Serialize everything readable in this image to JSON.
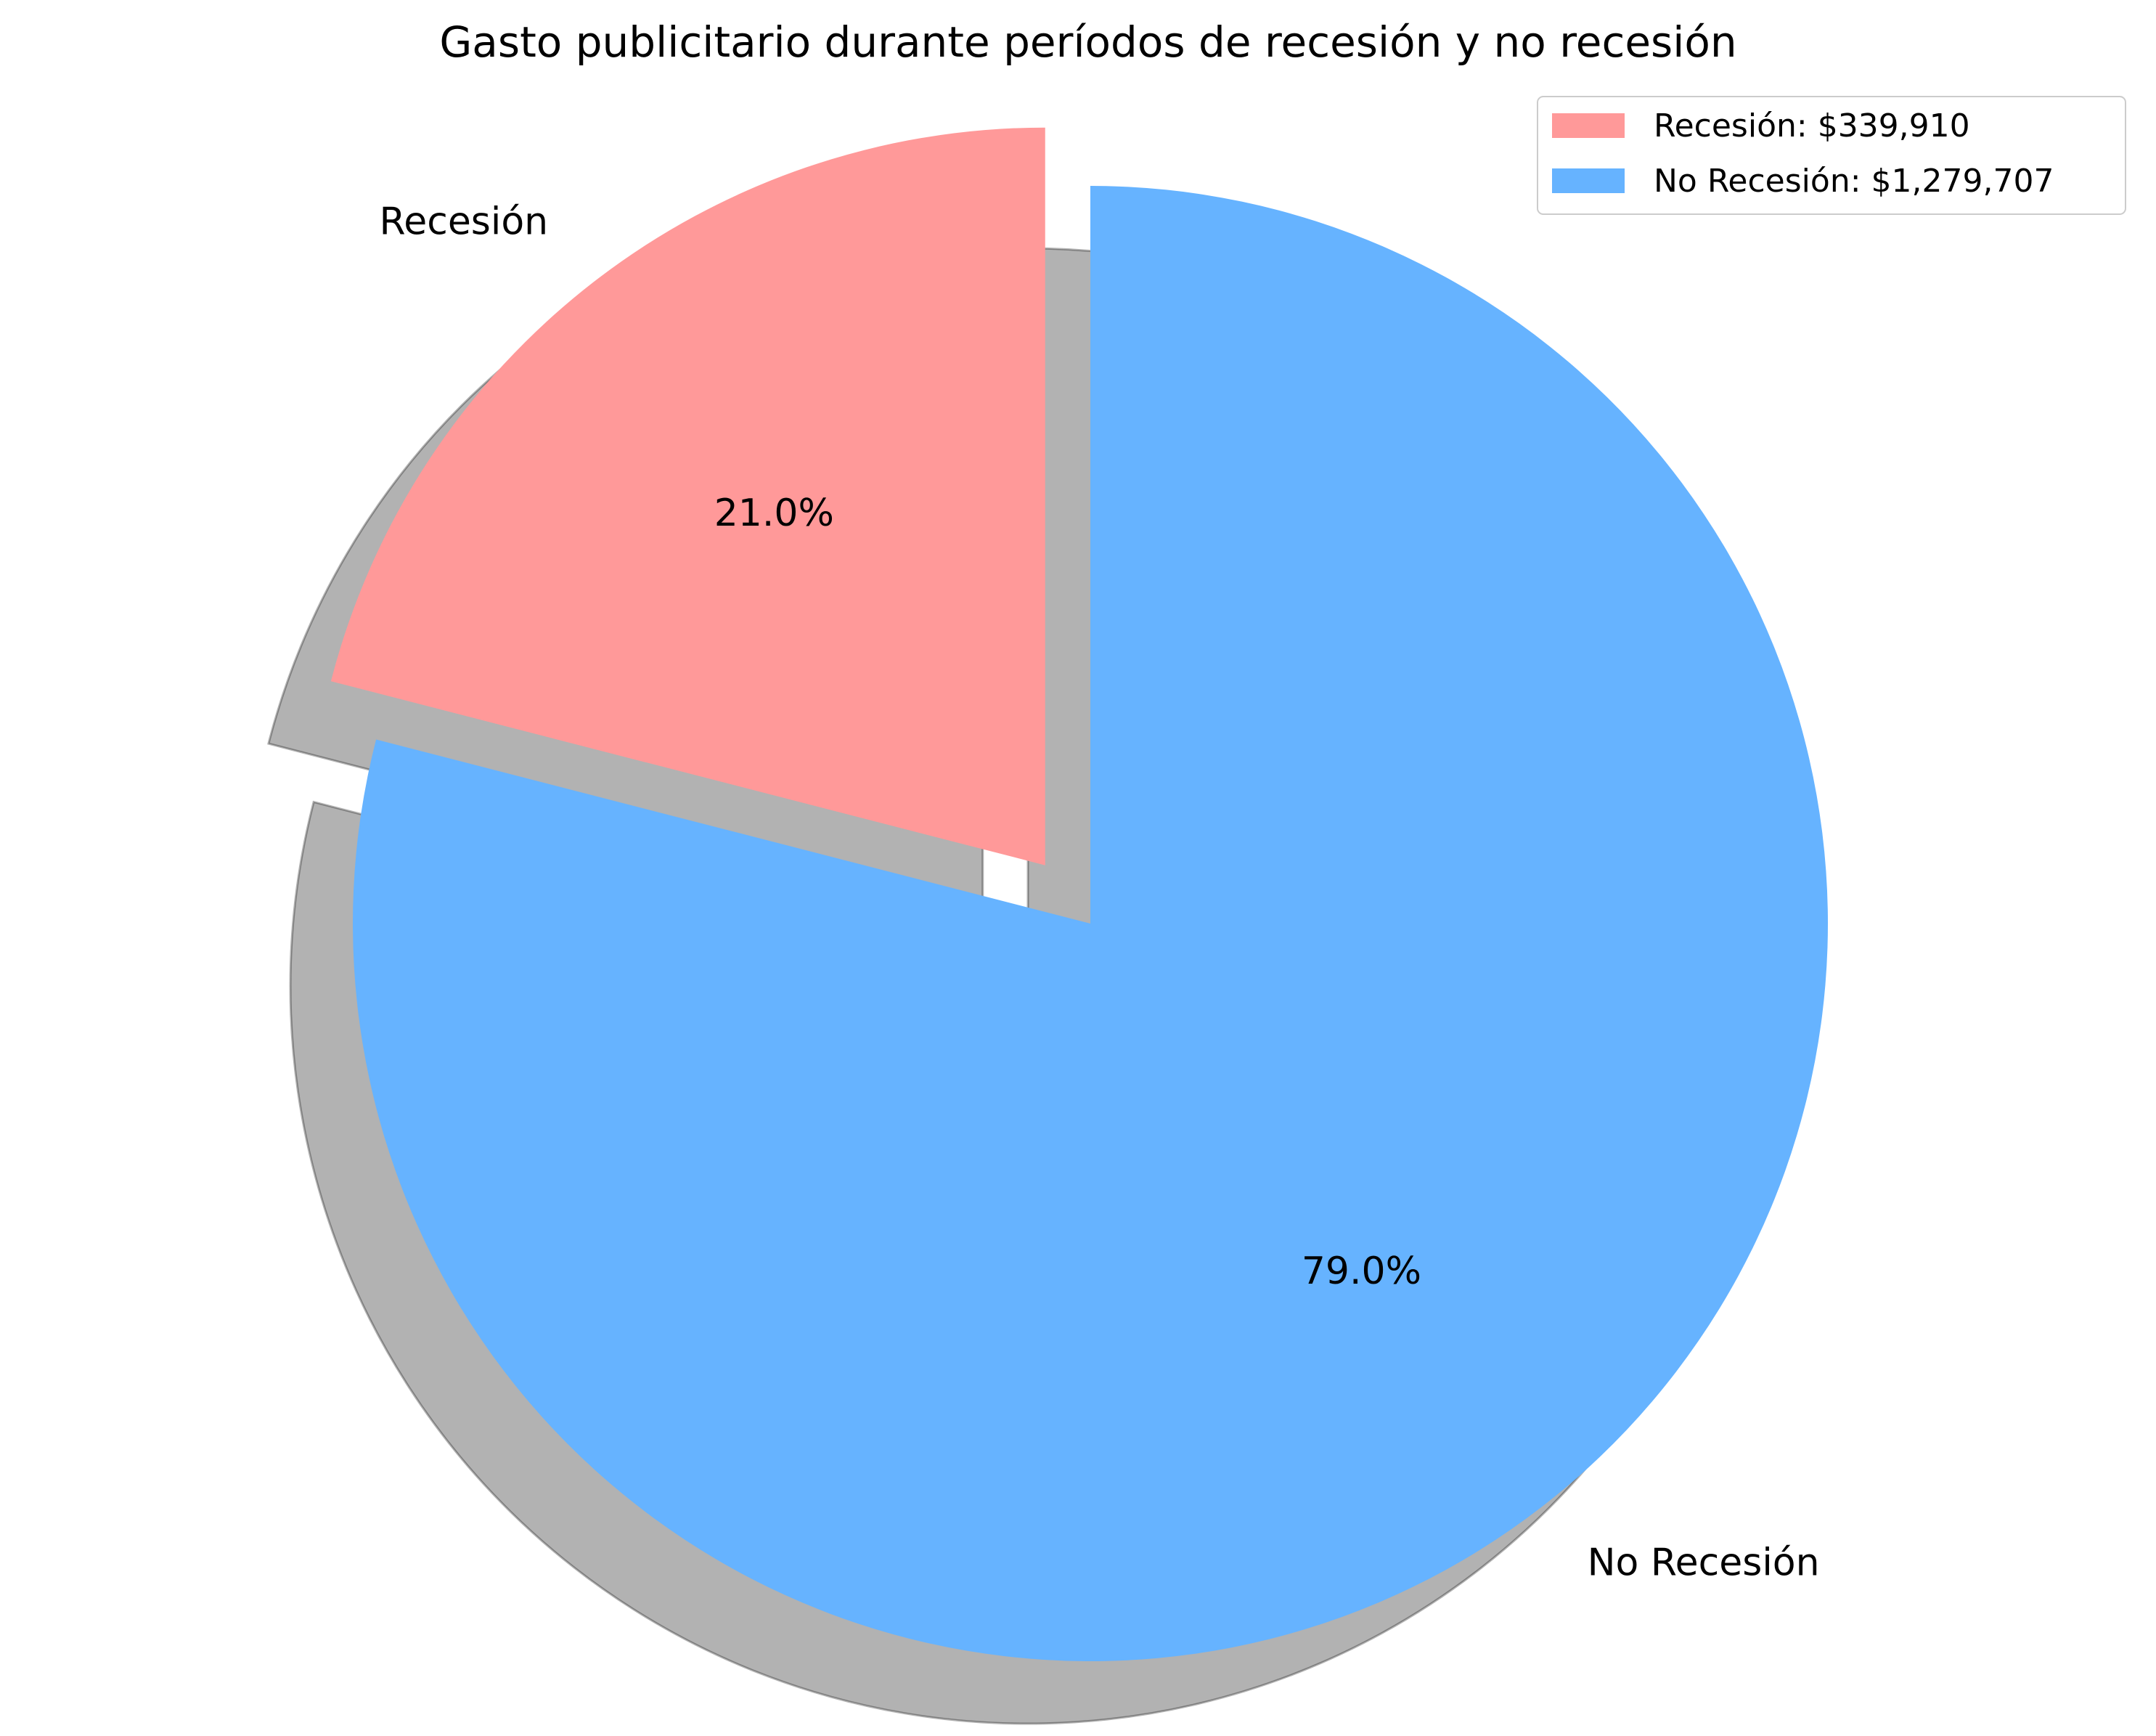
{
  "chart_data": {
    "type": "pie",
    "title": "Gasto publicitario durante períodos de recesión y no recesión",
    "startangle_deg": 90,
    "counterclock": true,
    "shadow": true,
    "slices": [
      {
        "label": "Recesión",
        "value": 339910,
        "percent_label": "21.0%",
        "legend_label": "Recesión: $339,910",
        "color": "#ff9999",
        "explode": 0.1
      },
      {
        "label": "No Recesión",
        "value": 1279707,
        "percent_label": "79.0%",
        "legend_label": "No Recesión: $1,279,707",
        "color": "#66b3ff",
        "explode": 0
      }
    ],
    "legend_position": "upper right"
  }
}
